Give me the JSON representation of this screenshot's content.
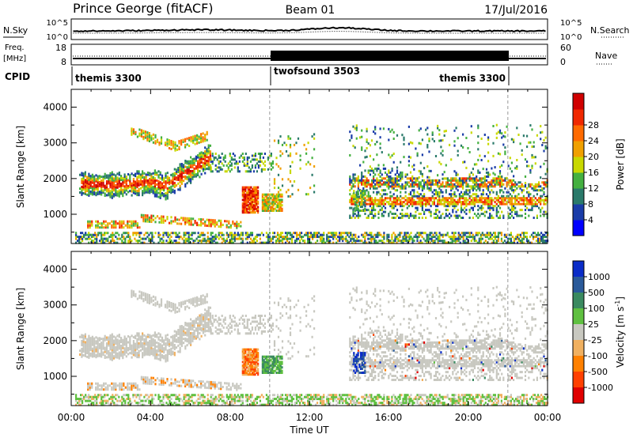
{
  "header": {
    "station": "Prince George (fitACF)",
    "beam": "Beam 01",
    "date": "17/Jul/2016"
  },
  "top_panels": {
    "noise": {
      "left_label": "N.Sky",
      "right_label": "N.Search",
      "left_ticks": [
        "10^5",
        "10^0"
      ],
      "right_ticks": [
        "10^5",
        "10^0"
      ]
    },
    "freq": {
      "left_label_line1": "Freq.",
      "left_label_line2": "[MHz]",
      "left_ticks": [
        "18",
        "8"
      ],
      "right_label": "Nave",
      "right_ticks": [
        "60",
        "0"
      ]
    },
    "cpid": {
      "label": "CPID",
      "modes": [
        {
          "name": "themis 3300",
          "start_h": 0,
          "end_h": 10
        },
        {
          "name": "twofsound 3503",
          "start_h": 10,
          "end_h": 22
        },
        {
          "name": "themis 3300",
          "start_h": 22,
          "end_h": 24
        }
      ]
    }
  },
  "colorbars": {
    "power": {
      "label": "Power [dB]",
      "ticks": [
        "4",
        "8",
        "12",
        "16",
        "20",
        "24",
        "28"
      ],
      "colors": [
        "#0000ff",
        "#1a3ca8",
        "#2a7a6a",
        "#44b040",
        "#c8d800",
        "#f0a000",
        "#ff6a00",
        "#f02800",
        "#d00000"
      ]
    },
    "velocity": {
      "label_main": "Velocity [m s",
      "label_sup": "-1",
      "label_close": "]",
      "ticks": [
        "1000",
        "500",
        "100",
        "25",
        "-25",
        "-100",
        "-500",
        "-1000"
      ],
      "colors": [
        "#0a2cc8",
        "#2a5a9a",
        "#3a8a60",
        "#5fc040",
        "#c8c8c0",
        "#f0b060",
        "#ff8000",
        "#ff4000",
        "#e00000"
      ]
    }
  },
  "chart_data": [
    {
      "type": "heatmap",
      "name": "power-panel",
      "ylabel": "Slant Range [km]",
      "ylim": [
        180,
        4500
      ],
      "xlim_hours": [
        0,
        24
      ],
      "yticks": [
        "1000",
        "2000",
        "3000",
        "4000"
      ],
      "structures": [
        {
          "kind": "arc",
          "x": [
            0.5,
            4.5
          ],
          "y": [
            1750,
            2050
          ],
          "level": "high"
        },
        {
          "kind": "arc",
          "x": [
            4.5,
            6.5
          ],
          "y": [
            2050,
            2600
          ],
          "level": "high"
        },
        {
          "kind": "blob",
          "x": [
            8.6,
            9.4
          ],
          "y": [
            1000,
            1800
          ],
          "level": "high"
        },
        {
          "kind": "blob",
          "x": [
            9.6,
            10.6
          ],
          "y": [
            1100,
            1600
          ],
          "level": "mid"
        },
        {
          "kind": "band",
          "x": [
            14,
            24
          ],
          "y": [
            1200,
            2200
          ],
          "level": "mid"
        }
      ]
    },
    {
      "type": "heatmap",
      "name": "velocity-panel",
      "ylabel": "Slant Range [km]",
      "ylim": [
        180,
        4500
      ],
      "xlim_hours": [
        0,
        24
      ],
      "yticks": [
        "1000",
        "2000",
        "3000",
        "4000"
      ],
      "structures": [
        {
          "kind": "ground",
          "x": [
            0.5,
            7
          ],
          "y": [
            1600,
            2200
          ],
          "value": 0
        },
        {
          "kind": "blob",
          "x": [
            8.6,
            9.4
          ],
          "y": [
            1000,
            1800
          ],
          "value": -300
        },
        {
          "kind": "blob",
          "x": [
            9.6,
            10.6
          ],
          "y": [
            1100,
            1600
          ],
          "value": 150
        },
        {
          "kind": "band",
          "x": [
            14,
            24
          ],
          "y": [
            1200,
            2200
          ],
          "value": 0
        }
      ]
    }
  ],
  "xaxis": {
    "label": "Time UT",
    "ticks": [
      "00:00",
      "04:00",
      "08:00",
      "12:00",
      "16:00",
      "20:00",
      "00:00"
    ]
  }
}
